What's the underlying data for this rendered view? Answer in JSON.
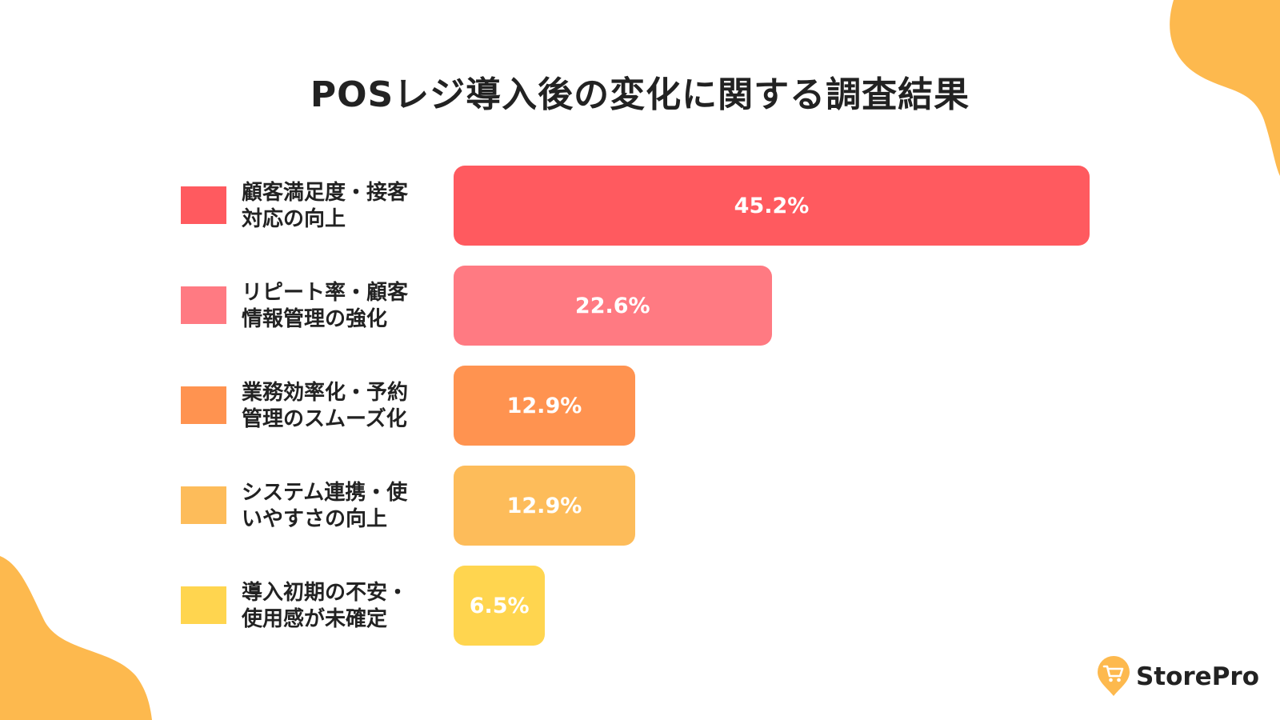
{
  "title": "POSレジ導入後の変化に関する調査結果",
  "brand": {
    "name": "StorePro",
    "icon": "cart-pin-icon",
    "color": "#FDB94E"
  },
  "decor_color": "#FDB94E",
  "chart_data": {
    "type": "bar",
    "orientation": "horizontal",
    "title": "POSレジ導入後の変化に関する調査結果",
    "xlabel": "",
    "ylabel": "",
    "categories": [
      "顧客満足度・接客\n対応の向上",
      "リピート率・顧客\n情報管理の強化",
      "業務効率化・予約\n管理のスムーズ化",
      "システム連携・使\nいやすさの向上",
      "導入初期の不安・\n使用感が未確定"
    ],
    "values": [
      45.2,
      22.6,
      12.9,
      12.9,
      6.5
    ],
    "value_labels": [
      "45.2%",
      "22.6%",
      "12.9%",
      "12.9%",
      "6.5%"
    ],
    "colors": [
      "#FF5A5F",
      "#FF7A82",
      "#FF9350",
      "#FDBC5A",
      "#FFD54F"
    ],
    "xlim": [
      0,
      45.2
    ],
    "grid": false,
    "legend": "left"
  }
}
